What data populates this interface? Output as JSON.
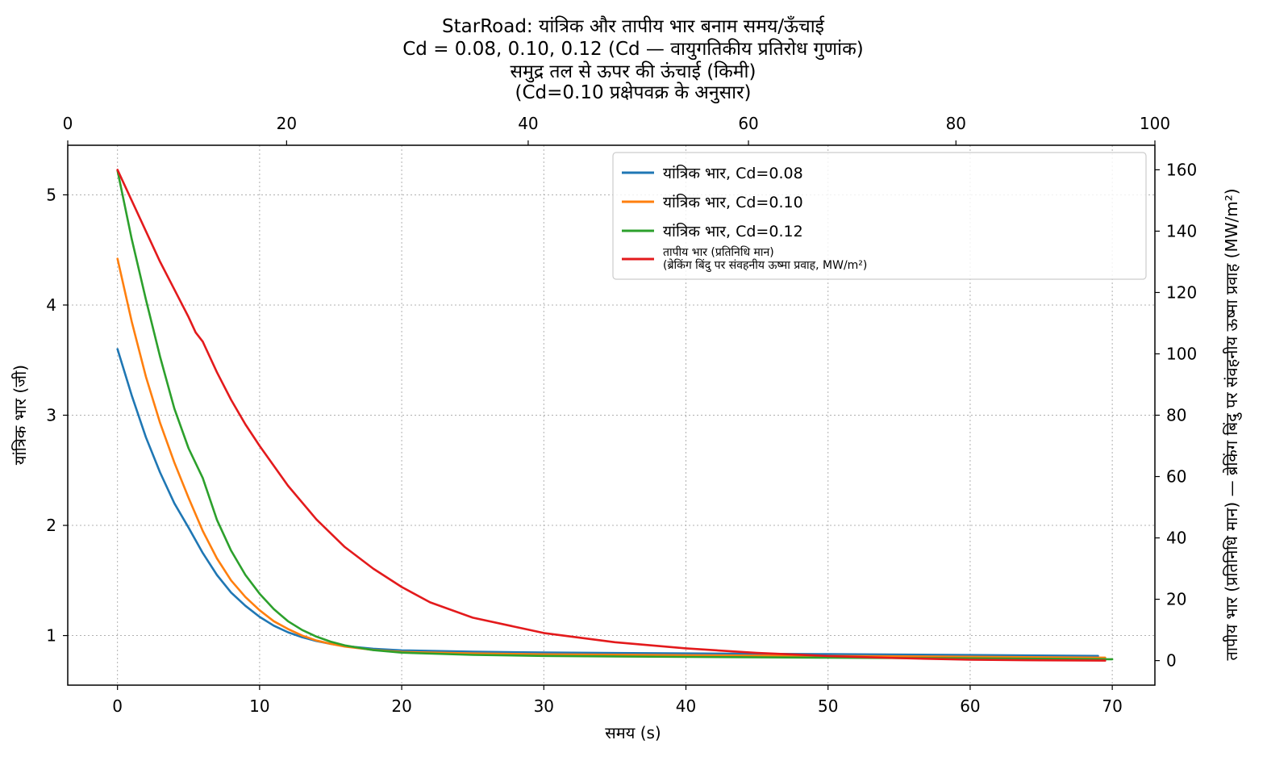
{
  "chart_data": {
    "type": "line",
    "title_lines": [
      "StarRoad: यांत्रिक और तापीय भार बनाम समय/ऊँचाई",
      "Cd = 0.08, 0.10, 0.12 (Cd — वायुगतिकीय प्रतिरोध गुणांक)",
      "समुद्र तल से ऊपर की ऊंचाई (किमी)",
      "(Cd=0.10 प्रक्षेपवक्र के अनुसार)"
    ],
    "xlabel": "समय (s)",
    "ylabel": "यांत्रिक भार (जी)",
    "y2label": "तापीय भार (प्रतिनिधि मान) — ब्रेकिंग बिंदु पर संवहनीय ऊष्मा प्रवाह (MW/m²)",
    "xlim": [
      -3.5,
      73
    ],
    "ylim": [
      0.55,
      5.45
    ],
    "y2lim": [
      -8,
      168
    ],
    "x_ticks": [
      0,
      10,
      20,
      30,
      40,
      50,
      60,
      70
    ],
    "y_ticks": [
      1,
      2,
      3,
      4,
      5
    ],
    "y2_ticks": [
      0,
      20,
      40,
      60,
      80,
      100,
      120,
      140,
      160
    ],
    "top_axis": {
      "label": "समुद्र तल से ऊपर की ऊंचाई (किमी)",
      "ticks": [
        {
          "label": "0",
          "time": -3.5
        },
        {
          "label": "20",
          "time": 11.9
        },
        {
          "label": "40",
          "time": 28.9
        },
        {
          "label": "60",
          "time": 44.4
        },
        {
          "label": "80",
          "time": 59.0
        },
        {
          "label": "100",
          "time": 73.0
        }
      ]
    },
    "grid": true,
    "legend_position": "top-right",
    "series": [
      {
        "name": "यांत्रिक भार, Cd=0.08",
        "color": "#1f77b4",
        "axis": "left",
        "x": [
          0,
          1,
          2,
          3,
          4,
          5,
          6,
          7,
          8,
          9,
          10,
          11,
          12,
          13,
          14,
          15,
          16,
          18,
          20,
          25,
          30,
          40,
          50,
          60,
          69
        ],
        "y": [
          3.6,
          3.18,
          2.8,
          2.48,
          2.2,
          1.98,
          1.75,
          1.55,
          1.39,
          1.27,
          1.17,
          1.09,
          1.03,
          0.985,
          0.95,
          0.925,
          0.905,
          0.88,
          0.866,
          0.853,
          0.846,
          0.838,
          0.831,
          0.823,
          0.815
        ]
      },
      {
        "name": "यांत्रिक भार, Cd=0.10",
        "color": "#ff7f0e",
        "axis": "left",
        "x": [
          0,
          1,
          2,
          3,
          4,
          5,
          6,
          7,
          8,
          9,
          10,
          11,
          12,
          13,
          14,
          15,
          16,
          18,
          20,
          25,
          30,
          40,
          50,
          60,
          69.5
        ],
        "y": [
          4.42,
          3.85,
          3.35,
          2.93,
          2.57,
          2.25,
          1.95,
          1.7,
          1.5,
          1.35,
          1.23,
          1.13,
          1.06,
          1.0,
          0.955,
          0.925,
          0.9,
          0.87,
          0.852,
          0.838,
          0.83,
          0.822,
          0.815,
          0.808,
          0.8
        ]
      },
      {
        "name": "यांत्रिक भार, Cd=0.12",
        "color": "#2ca02c",
        "axis": "left",
        "x": [
          0,
          1,
          2,
          3,
          4,
          5,
          6,
          7,
          8,
          9,
          10,
          11,
          12,
          13,
          14,
          15,
          16,
          18,
          20,
          25,
          30,
          40,
          50,
          60,
          70
        ],
        "y": [
          5.22,
          4.6,
          4.05,
          3.53,
          3.06,
          2.7,
          2.43,
          2.05,
          1.77,
          1.55,
          1.38,
          1.24,
          1.13,
          1.05,
          0.99,
          0.945,
          0.91,
          0.868,
          0.845,
          0.825,
          0.815,
          0.806,
          0.799,
          0.793,
          0.785
        ]
      },
      {
        "name": "तापीय भार (प्रतिनिधि मान)\n(ब्रेकिंग बिंदु पर संवहनीय ऊष्मा प्रवाह, MW/m²)",
        "color": "#e31a1c",
        "axis": "right",
        "x": [
          0,
          1,
          2,
          3,
          4,
          5,
          5.5,
          6,
          7,
          8,
          9,
          10,
          12,
          14,
          16,
          18,
          20,
          22,
          25,
          30,
          35,
          40,
          45,
          50,
          55,
          60,
          65,
          69.5
        ],
        "y": [
          160,
          150,
          140,
          130,
          121,
          112,
          107,
          104,
          94,
          85,
          77,
          70,
          57,
          46,
          37,
          30,
          24,
          19,
          14,
          9,
          6,
          4,
          2.5,
          1.5,
          0.8,
          0.3,
          0.1,
          0
        ]
      }
    ]
  }
}
